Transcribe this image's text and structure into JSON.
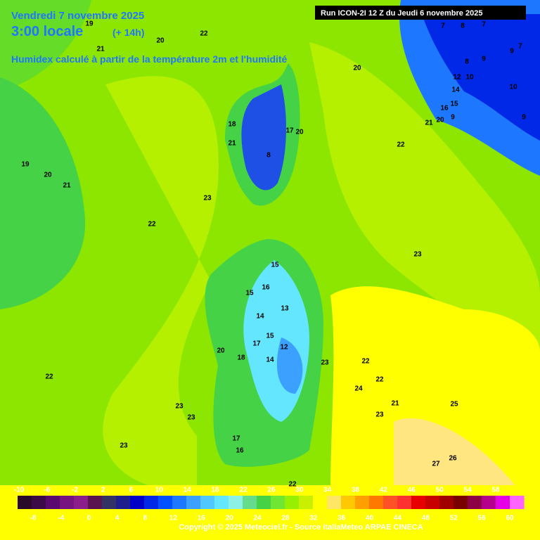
{
  "header": {
    "date": "Vendredi 7 novembre 2025",
    "time": "3:00 locale",
    "lead": "(+ 14h)",
    "subtitle": "Humidex calculé à partir de la température 2m et l'humidité",
    "run": "Run ICON-2I 12 Z du Jeudi 6 novembre 2025"
  },
  "contour_labels": [
    22,
    21,
    19,
    20,
    20,
    19,
    20,
    21,
    22,
    23,
    22,
    23,
    22,
    23,
    23,
    23,
    23,
    22,
    22,
    24,
    23,
    21,
    25,
    27,
    26,
    22,
    15,
    15,
    16,
    13,
    14,
    15,
    17,
    12,
    14,
    18,
    20,
    17,
    16,
    18,
    21,
    8,
    17,
    20,
    7,
    8,
    7,
    8,
    9,
    9,
    7,
    12,
    10,
    14,
    10,
    16,
    15,
    21,
    20,
    9,
    9
  ],
  "colorbar": {
    "top_labels": [
      -10,
      -6,
      -2,
      2,
      6,
      10,
      14,
      18,
      22,
      26,
      30,
      34,
      38,
      42,
      46,
      50,
      54,
      58
    ],
    "bottom_labels": [
      -8,
      -4,
      0,
      4,
      8,
      12,
      16,
      20,
      24,
      28,
      32,
      36,
      40,
      44,
      48,
      52,
      56,
      60
    ],
    "colors": [
      "#2a0a2a",
      "#3c0a46",
      "#5a0a6e",
      "#781482",
      "#8c1e8c",
      "#5a1450",
      "#323264",
      "#1e1e8c",
      "#0000c8",
      "#0028e6",
      "#0050ff",
      "#1e78ff",
      "#3ca0ff",
      "#50c8ff",
      "#64e6ff",
      "#8cf0e6",
      "#64dc8c",
      "#46d246",
      "#6ee632",
      "#96f000",
      "#c8f000",
      "#ffff00",
      "#ffe664",
      "#ffc800",
      "#ffa000",
      "#ff7800",
      "#ff5028",
      "#ff3232",
      "#e60000",
      "#c80000",
      "#a00000",
      "#780000",
      "#8c0046",
      "#b4008c",
      "#e600e6",
      "#ff64ff"
    ]
  },
  "footer": {
    "copyright": "Copyright © 2025 Meteociel.fr - Source italiaMeteo ARPAE CINECA"
  }
}
